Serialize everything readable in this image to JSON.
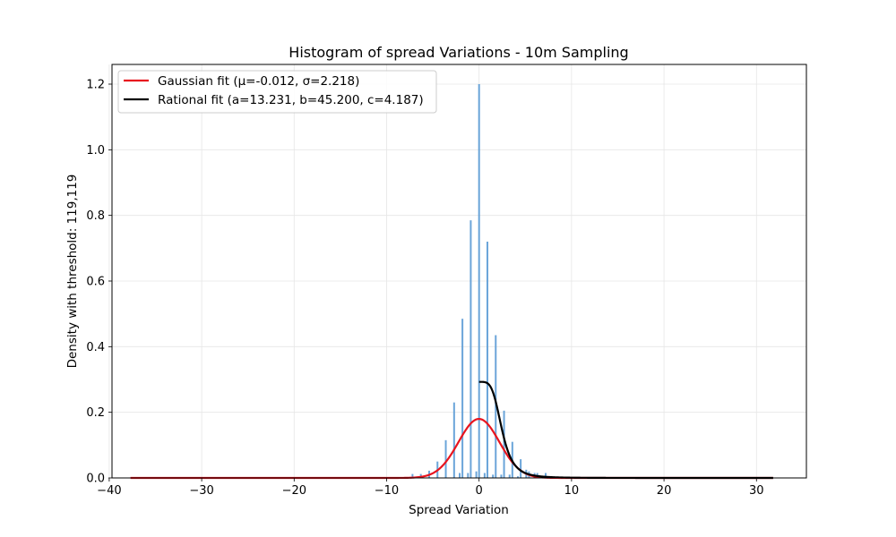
{
  "chart_data": {
    "type": "bar",
    "title": "Histogram of spread Variations - 10m Sampling",
    "xlabel": "Spread Variation",
    "ylabel": "Density with threshold: 119,119",
    "xlim": [
      -39.7,
      35.4
    ],
    "ylim": [
      0,
      1.26
    ],
    "x_ticks": [
      -40,
      -30,
      -20,
      -10,
      0,
      10,
      20,
      30
    ],
    "y_ticks": [
      0.0,
      0.2,
      0.4,
      0.6,
      0.8,
      1.0,
      1.2
    ],
    "x_tick_labels": [
      "−40",
      "−30",
      "−20",
      "−10",
      "0",
      "10",
      "20",
      "30"
    ],
    "y_tick_labels": [
      "0.0",
      "0.2",
      "0.4",
      "0.6",
      "0.8",
      "1.0",
      "1.2"
    ],
    "grid": true,
    "legend_position": "top-left",
    "bar_color": "#5b9bd5",
    "histogram": {
      "x": [
        -7.2,
        -6.3,
        -5.4,
        -4.5,
        -3.6,
        -2.7,
        -2.1,
        -1.8,
        -1.2,
        -0.9,
        -0.3,
        0.0,
        0.6,
        0.9,
        1.5,
        1.8,
        2.4,
        2.7,
        3.3,
        3.6,
        4.2,
        4.5,
        5.1,
        5.4,
        6.0,
        6.3,
        7.2
      ],
      "values": [
        0.012,
        0.012,
        0.022,
        0.05,
        0.115,
        0.23,
        0.015,
        0.485,
        0.015,
        0.785,
        0.02,
        1.2,
        0.015,
        0.72,
        0.01,
        0.435,
        0.01,
        0.205,
        0.01,
        0.11,
        0.005,
        0.057,
        0.025,
        0.02,
        0.015,
        0.015,
        0.015
      ]
    },
    "series": [
      {
        "name": "Gaussian fit (μ=-0.012, σ=2.218)",
        "color": "#e8141e",
        "type": "gaussian",
        "mu": -0.012,
        "sigma": 2.218,
        "x_range": [
          -37.7,
          31.8
        ]
      },
      {
        "name": "Rational fit (a=13.231, b=45.200, c=4.187)",
        "color": "#000000",
        "type": "rational",
        "a": 13.231,
        "b": 45.2,
        "c": 4.187,
        "x_range": [
          0.0,
          31.8
        ]
      }
    ]
  }
}
